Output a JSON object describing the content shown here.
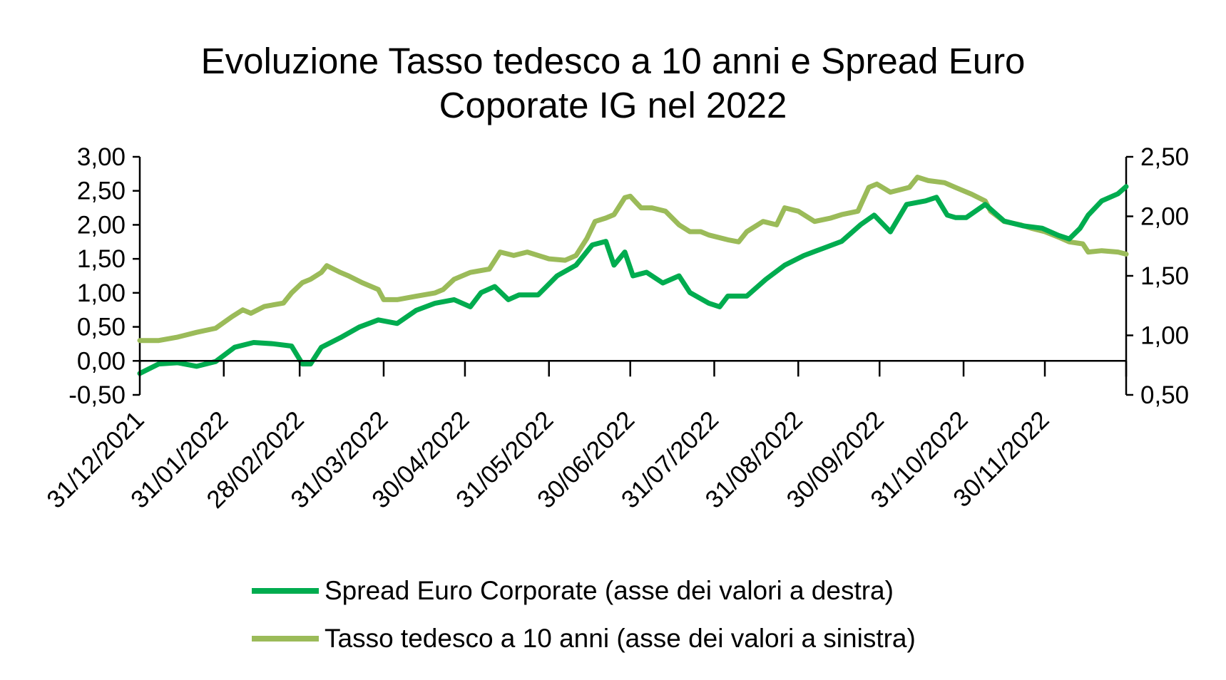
{
  "chart_data": {
    "type": "line",
    "title": "Evoluzione Tasso tedesco a 10 anni e Spread Euro Coporate IG nel 2022",
    "title_lines": [
      "Evoluzione Tasso tedesco a 10 anni e Spread Euro",
      "Coporate IG nel 2022"
    ],
    "x_range": [
      "2021-12-31",
      "2022-12-30"
    ],
    "x_tick_labels": [
      {
        "date": "2021-12-31",
        "label": "31/12/2021"
      },
      {
        "date": "2022-01-31",
        "label": "31/01/2022"
      },
      {
        "date": "2022-02-28",
        "label": "28/02/2022"
      },
      {
        "date": "2022-03-31",
        "label": "31/03/2022"
      },
      {
        "date": "2022-04-30",
        "label": "30/04/2022"
      },
      {
        "date": "2022-05-31",
        "label": "31/05/2022"
      },
      {
        "date": "2022-06-30",
        "label": "30/06/2022"
      },
      {
        "date": "2022-07-31",
        "label": "31/07/2022"
      },
      {
        "date": "2022-08-31",
        "label": "31/08/2022"
      },
      {
        "date": "2022-09-30",
        "label": "30/09/2022"
      },
      {
        "date": "2022-10-31",
        "label": "31/10/2022"
      },
      {
        "date": "2022-11-30",
        "label": "30/11/2022"
      }
    ],
    "y_left": {
      "range": [
        -0.5,
        3.0
      ],
      "ticks": [
        "3,00",
        "2,50",
        "2,00",
        "1,50",
        "1,00",
        "0,50",
        "0,00",
        "-0,50"
      ],
      "tick_values": [
        3,
        2.5,
        2,
        1.5,
        1,
        0.5,
        0,
        -0.5
      ]
    },
    "y_right": {
      "range": [
        0.5,
        2.5
      ],
      "ticks": [
        "2,50",
        "2,00",
        "1,50",
        "1,00",
        "0,50"
      ],
      "tick_values": [
        2.5,
        2,
        1.5,
        1,
        0.5
      ]
    },
    "grid": false,
    "legend_position": "bottom",
    "series": [
      {
        "name": "Spread Euro Corporate (asse dei valori a destra)",
        "axis": "right",
        "color": "#00AC4F",
        "x": [
          "2021-12-31",
          "2022-01-07",
          "2022-01-14",
          "2022-01-21",
          "2022-01-28",
          "2022-02-04",
          "2022-02-11",
          "2022-02-18",
          "2022-02-25",
          "2022-03-01",
          "2022-03-04",
          "2022-03-08",
          "2022-03-15",
          "2022-03-22",
          "2022-03-29",
          "2022-04-05",
          "2022-04-12",
          "2022-04-19",
          "2022-04-26",
          "2022-05-02",
          "2022-05-06",
          "2022-05-11",
          "2022-05-16",
          "2022-05-20",
          "2022-05-27",
          "2022-06-03",
          "2022-06-10",
          "2022-06-16",
          "2022-06-21",
          "2022-06-24",
          "2022-06-28",
          "2022-07-01",
          "2022-07-06",
          "2022-07-12",
          "2022-07-18",
          "2022-07-22",
          "2022-07-29",
          "2022-08-02",
          "2022-08-05",
          "2022-08-12",
          "2022-08-19",
          "2022-08-26",
          "2022-09-02",
          "2022-09-09",
          "2022-09-16",
          "2022-09-23",
          "2022-09-28",
          "2022-10-04",
          "2022-10-10",
          "2022-10-17",
          "2022-10-21",
          "2022-10-25",
          "2022-10-28",
          "2022-11-01",
          "2022-11-08",
          "2022-11-15",
          "2022-11-22",
          "2022-11-29",
          "2022-12-05",
          "2022-12-09",
          "2022-12-13",
          "2022-12-16",
          "2022-12-21",
          "2022-12-27",
          "2022-12-30"
        ],
        "y": [
          0.68,
          0.76,
          0.77,
          0.74,
          0.78,
          0.9,
          0.94,
          0.93,
          0.91,
          0.76,
          0.76,
          0.9,
          0.98,
          1.07,
          1.13,
          1.1,
          1.21,
          1.27,
          1.3,
          1.24,
          1.36,
          1.41,
          1.3,
          1.34,
          1.34,
          1.5,
          1.59,
          1.76,
          1.79,
          1.59,
          1.7,
          1.5,
          1.53,
          1.44,
          1.5,
          1.36,
          1.27,
          1.24,
          1.33,
          1.33,
          1.47,
          1.59,
          1.67,
          1.73,
          1.79,
          1.93,
          2.01,
          1.87,
          2.1,
          2.13,
          2.16,
          2.01,
          1.99,
          1.99,
          2.1,
          1.96,
          1.92,
          1.9,
          1.84,
          1.81,
          1.9,
          2.01,
          2.13,
          2.19,
          2.25
        ]
      },
      {
        "name": "Tasso tedesco a 10 anni (asse dei valori a sinistra)",
        "axis": "left",
        "color": "#9BBB59",
        "x": [
          "2021-12-31",
          "2022-01-07",
          "2022-01-14",
          "2022-01-21",
          "2022-01-28",
          "2022-02-03",
          "2022-02-07",
          "2022-02-10",
          "2022-02-15",
          "2022-02-22",
          "2022-02-25",
          "2022-03-01",
          "2022-03-04",
          "2022-03-08",
          "2022-03-10",
          "2022-03-15",
          "2022-03-18",
          "2022-03-23",
          "2022-03-29",
          "2022-03-31",
          "2022-04-05",
          "2022-04-12",
          "2022-04-19",
          "2022-04-22",
          "2022-04-26",
          "2022-05-02",
          "2022-05-09",
          "2022-05-13",
          "2022-05-18",
          "2022-05-23",
          "2022-05-31",
          "2022-06-06",
          "2022-06-10",
          "2022-06-14",
          "2022-06-17",
          "2022-06-21",
          "2022-06-24",
          "2022-06-28",
          "2022-06-30",
          "2022-07-04",
          "2022-07-08",
          "2022-07-13",
          "2022-07-18",
          "2022-07-22",
          "2022-07-26",
          "2022-07-29",
          "2022-08-05",
          "2022-08-09",
          "2022-08-12",
          "2022-08-18",
          "2022-08-23",
          "2022-08-26",
          "2022-08-31",
          "2022-09-06",
          "2022-09-12",
          "2022-09-16",
          "2022-09-22",
          "2022-09-26",
          "2022-09-29",
          "2022-10-04",
          "2022-10-11",
          "2022-10-14",
          "2022-10-18",
          "2022-10-24",
          "2022-10-28",
          "2022-11-03",
          "2022-11-08",
          "2022-11-10",
          "2022-11-15",
          "2022-11-21",
          "2022-11-25",
          "2022-11-30",
          "2022-12-05",
          "2022-12-09",
          "2022-12-14",
          "2022-12-16",
          "2022-12-21",
          "2022-12-27",
          "2022-12-30"
        ],
        "y": [
          0.3,
          0.3,
          0.35,
          0.42,
          0.48,
          0.65,
          0.75,
          0.7,
          0.8,
          0.85,
          1.0,
          1.15,
          1.2,
          1.3,
          1.4,
          1.3,
          1.25,
          1.15,
          1.05,
          0.9,
          0.9,
          0.95,
          1.0,
          1.05,
          1.2,
          1.3,
          1.35,
          1.6,
          1.55,
          1.6,
          1.5,
          1.48,
          1.55,
          1.8,
          2.05,
          2.1,
          2.15,
          2.4,
          2.42,
          2.25,
          2.25,
          2.2,
          2.0,
          1.9,
          1.9,
          1.85,
          1.78,
          1.75,
          1.9,
          2.05,
          2.0,
          2.25,
          2.2,
          2.05,
          2.1,
          2.15,
          2.2,
          2.55,
          2.6,
          2.48,
          2.55,
          2.7,
          2.65,
          2.62,
          2.55,
          2.45,
          2.35,
          2.2,
          2.05,
          2.0,
          1.95,
          1.9,
          1.82,
          1.75,
          1.72,
          1.6,
          1.62,
          1.6,
          1.57
        ]
      }
    ]
  }
}
